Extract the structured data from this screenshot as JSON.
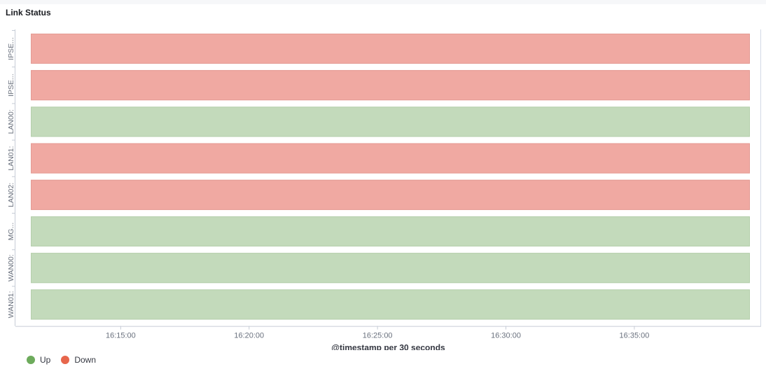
{
  "panel": {
    "title": "Link Status"
  },
  "chart_data": {
    "type": "timeline",
    "title": "Link Status",
    "xlabel": "@timestamp per 30 seconds",
    "ylabel": "",
    "x_ticks": [
      "16:15:00",
      "16:20:00",
      "16:25:00",
      "16:30:00",
      "16:35:00"
    ],
    "xlim": [
      "16:11:30",
      "16:39:30"
    ],
    "rows": [
      {
        "label": "IPSE...",
        "status": "Down"
      },
      {
        "label": "IPSE...",
        "status": "Down"
      },
      {
        "label": "LAN00:",
        "status": "Up"
      },
      {
        "label": "LAN01:",
        "status": "Down"
      },
      {
        "label": "LAN02:",
        "status": "Down"
      },
      {
        "label": "MG...",
        "status": "Up"
      },
      {
        "label": "WAN00:",
        "status": "Up"
      },
      {
        "label": "WAN01:",
        "status": "Up"
      }
    ],
    "legend": [
      {
        "name": "Up",
        "color": "#6dab5c"
      },
      {
        "name": "Down",
        "color": "#e7664c"
      }
    ],
    "legend_position": "bottom-left",
    "status_colors": {
      "Up": "#c3dabb",
      "Down": "#f0a9a2"
    }
  }
}
